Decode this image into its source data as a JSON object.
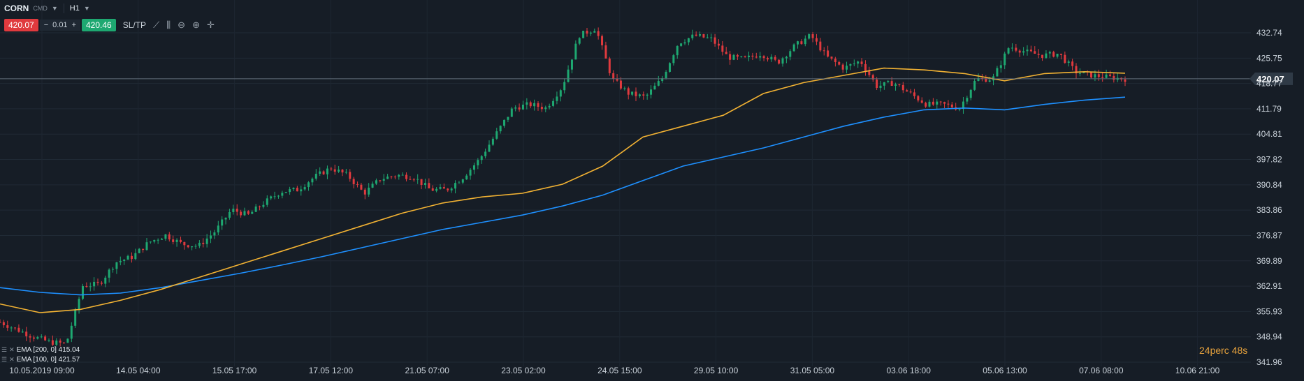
{
  "header": {
    "symbol": "CORN",
    "type": "CMD",
    "timeframe": "H1"
  },
  "trade": {
    "sell_price": "420.07",
    "qty_minus": "−",
    "qty_value": "0.01",
    "qty_plus": "+",
    "buy_price": "420.46",
    "sltp_label": "SL/TP"
  },
  "icons": [
    "line-chart-icon",
    "candles-icon",
    "zoom-out-icon",
    "zoom-in-icon",
    "crosshair-icon"
  ],
  "indicators": [
    {
      "label": "EMA [200, 0] 415.04",
      "color": "#1e90ff"
    },
    {
      "label": "EMA [100, 0] 421.57",
      "color": "#f2b233"
    }
  ],
  "timer": {
    "value": "24perc",
    "seconds": "48s"
  },
  "colors": {
    "bg": "#161d26",
    "up": "#1ea871",
    "down": "#e03a3e",
    "ema200": "#1e90ff",
    "ema100": "#f2b233"
  },
  "chart_data": {
    "type": "line",
    "current_price": 420.07,
    "y_ticks": [
      432.74,
      425.75,
      418.77,
      411.79,
      404.81,
      397.82,
      390.84,
      383.86,
      376.87,
      369.89,
      362.91,
      355.93,
      348.94,
      341.96
    ],
    "y_tick_labels": [
      "432.74",
      "425.75",
      "418.77",
      "411.79",
      "404.81",
      "397.82",
      "390.84",
      "383.86",
      "376.87",
      "369.89",
      "362.91",
      "355.93",
      "348.94",
      "341.96"
    ],
    "x_ticks": [
      "10.05.2019 09:00",
      "14.05 04:00",
      "15.05 17:00",
      "17.05 12:00",
      "21.05 07:00",
      "23.05 02:00",
      "24.05 15:00",
      "29.05 10:00",
      "31.05 05:00",
      "03.06 18:00",
      "05.06 13:00",
      "07.06 08:00",
      "10.06 21:00"
    ],
    "ylim": [
      341.96,
      436.0
    ],
    "price_path": [
      353,
      351,
      349,
      347.5,
      347,
      363,
      363.5,
      369.5,
      371,
      375,
      377,
      374.5,
      374,
      378,
      384,
      382.5,
      386,
      389,
      389.5,
      393,
      395.5,
      393.5,
      388.5,
      392.5,
      393.5,
      393,
      389.5,
      389.5,
      393,
      398,
      405,
      412,
      413,
      412,
      418,
      432,
      434,
      420,
      416,
      415,
      420,
      430,
      432,
      431,
      426,
      425.5,
      427,
      424.5,
      429,
      432,
      426,
      423,
      425,
      418,
      419,
      416,
      413,
      413,
      412,
      420,
      420,
      429,
      427.5,
      426.5,
      427,
      422,
      421,
      420.5,
      420
    ],
    "series": [
      {
        "name": "EMA [200, 0]",
        "values": [
          362.5,
          361.2,
          360.5,
          361.0,
          362.5,
          364.5,
          366.5,
          368.7,
          371.0,
          373.5,
          376.0,
          378.5,
          380.5,
          382.5,
          385.0,
          388.0,
          392.0,
          396.0,
          398.5,
          401.0,
          404.0,
          407.0,
          409.5,
          411.5,
          412.0,
          411.5,
          413.0,
          414.2,
          415.0
        ]
      },
      {
        "name": "EMA [100, 0]",
        "values": [
          358.0,
          355.6,
          356.5,
          359.0,
          362.0,
          365.5,
          369.0,
          372.5,
          376.0,
          379.5,
          383.0,
          385.8,
          387.5,
          388.5,
          391.0,
          396.0,
          404.0,
          407.0,
          410.0,
          416.0,
          419.0,
          421.0,
          423.0,
          422.5,
          421.5,
          419.5,
          421.5,
          422.0,
          421.6
        ]
      }
    ],
    "grid": true
  }
}
